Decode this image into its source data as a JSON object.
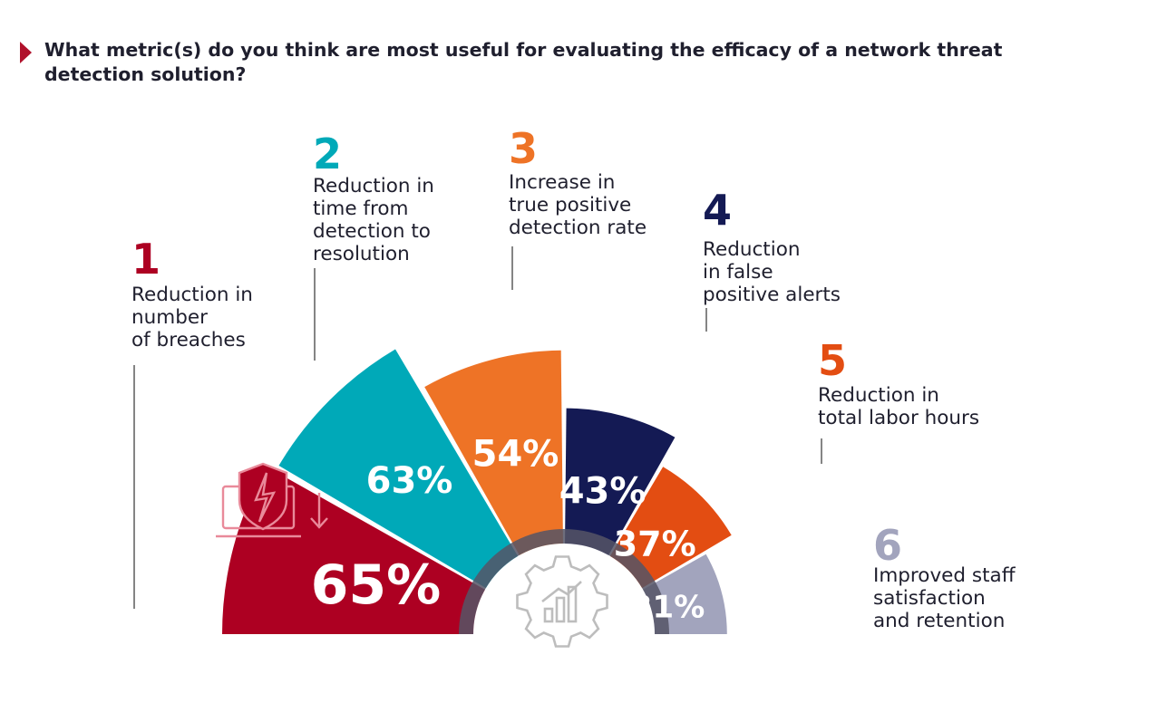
{
  "question": "What metric(s) do you think are most useful for evaluating the efficacy of a network threat detection solution?",
  "colors": {
    "marker": "#b0112b",
    "center_ring": "#555566",
    "icon_stroke": "#bdbdbd",
    "icon_on_red": "#e98a9a",
    "leader": "#333333"
  },
  "chart_data": {
    "type": "pie",
    "variant": "semicircle-rose",
    "unit": "%",
    "series": [
      {
        "rank": "1",
        "label": "Reduction in number of breaches",
        "lines": [
          "Reduction in",
          "number",
          "of breaches"
        ],
        "value": 65,
        "display": "65%",
        "color": "#ad0022"
      },
      {
        "rank": "2",
        "label": "Reduction in time from detection to resolution",
        "lines": [
          "Reduction in",
          "time from",
          "detection to",
          "resolution"
        ],
        "value": 63,
        "display": "63%",
        "color": "#00a9b8"
      },
      {
        "rank": "3",
        "label": "Increase in true positive detection rate",
        "lines": [
          "Increase in",
          "true positive",
          "detection rate"
        ],
        "value": 54,
        "display": "54%",
        "color": "#ee7326"
      },
      {
        "rank": "4",
        "label": "Reduction in false positive alerts",
        "lines": [
          "Reduction",
          "in false",
          "positive alerts"
        ],
        "value": 43,
        "display": "43%",
        "color": "#141a54"
      },
      {
        "rank": "5",
        "label": "Reduction in total labor hours",
        "lines": [
          "Reduction in",
          "total labor hours"
        ],
        "value": 37,
        "display": "37%",
        "color": "#e34d12"
      },
      {
        "rank": "6",
        "label": "Improved staff satisfaction and retention",
        "lines": [
          "Improved staff",
          "satisfaction",
          "and retention"
        ],
        "value": 31,
        "display": "31%",
        "color": "#a2a4bd"
      }
    ]
  },
  "icons": {
    "center": "gear-chart-icon",
    "breach": "shield-lightning-laptop-icon",
    "decrease": "arrow-down-icon"
  }
}
